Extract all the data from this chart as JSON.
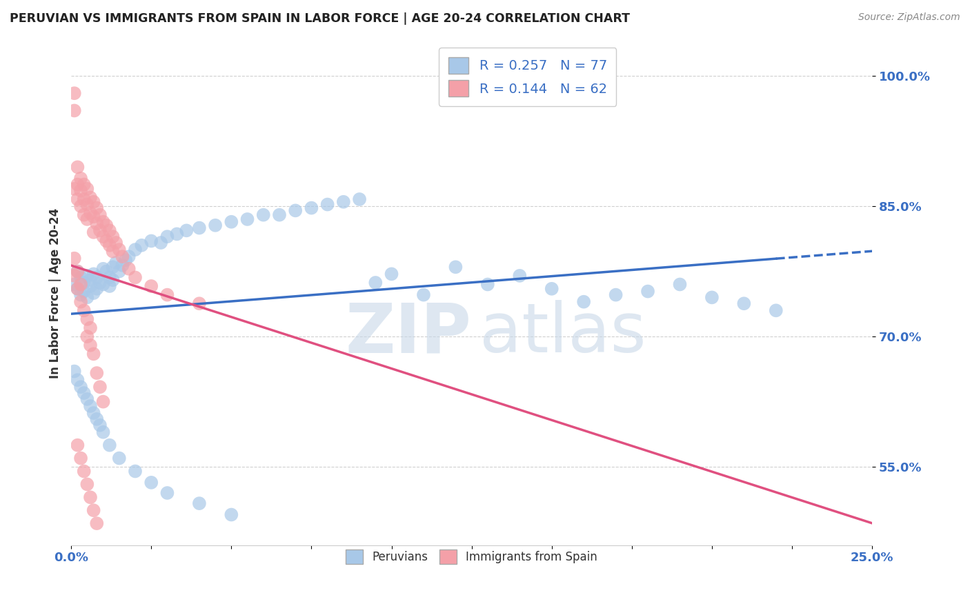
{
  "title": "PERUVIAN VS IMMIGRANTS FROM SPAIN IN LABOR FORCE | AGE 20-24 CORRELATION CHART",
  "source": "Source: ZipAtlas.com",
  "ylabel": "In Labor Force | Age 20-24",
  "xlim": [
    0.0,
    0.25
  ],
  "ylim": [
    0.46,
    1.04
  ],
  "y_tick_positions": [
    0.55,
    0.7,
    0.85,
    1.0
  ],
  "y_tick_labels": [
    "55.0%",
    "70.0%",
    "85.0%",
    "100.0%"
  ],
  "x_tick_positions": [
    0.0,
    0.025,
    0.05,
    0.075,
    0.1,
    0.125,
    0.15,
    0.175,
    0.2,
    0.225,
    0.25
  ],
  "blue_color": "#a8c8e8",
  "pink_color": "#f4a0a8",
  "blue_line_color": "#3a6fc4",
  "pink_line_color": "#e05080",
  "R_blue": 0.257,
  "N_blue": 77,
  "R_pink": 0.144,
  "N_pink": 62,
  "watermark_zip": "ZIP",
  "watermark_atlas": "atlas",
  "legend_label_blue": "Peruvians",
  "legend_label_pink": "Immigrants from Spain",
  "legend_R_blue": "R = 0.257   N = 77",
  "legend_R_pink": "R = 0.144   N = 62",
  "grid_color": "#d0d0d0",
  "background_color": "#ffffff",
  "title_color": "#222222",
  "source_color": "#888888",
  "axis_label_color": "#3a6fc4",
  "tick_label_color": "#3a6fc4",
  "blue_scatter_x": [
    0.001,
    0.002,
    0.002,
    0.003,
    0.003,
    0.004,
    0.004,
    0.005,
    0.005,
    0.006,
    0.006,
    0.007,
    0.007,
    0.008,
    0.008,
    0.009,
    0.01,
    0.01,
    0.011,
    0.012,
    0.012,
    0.013,
    0.013,
    0.014,
    0.015,
    0.016,
    0.017,
    0.018,
    0.02,
    0.022,
    0.025,
    0.028,
    0.03,
    0.033,
    0.036,
    0.04,
    0.045,
    0.05,
    0.055,
    0.06,
    0.065,
    0.07,
    0.075,
    0.08,
    0.085,
    0.09,
    0.095,
    0.1,
    0.11,
    0.12,
    0.13,
    0.14,
    0.15,
    0.16,
    0.17,
    0.18,
    0.19,
    0.2,
    0.21,
    0.22,
    0.001,
    0.002,
    0.003,
    0.004,
    0.005,
    0.006,
    0.007,
    0.008,
    0.009,
    0.01,
    0.012,
    0.015,
    0.02,
    0.025,
    0.03,
    0.04,
    0.05
  ],
  "blue_scatter_y": [
    0.76,
    0.775,
    0.755,
    0.768,
    0.748,
    0.762,
    0.752,
    0.77,
    0.745,
    0.765,
    0.758,
    0.772,
    0.75,
    0.768,
    0.755,
    0.762,
    0.778,
    0.76,
    0.775,
    0.768,
    0.758,
    0.78,
    0.765,
    0.785,
    0.775,
    0.782,
    0.788,
    0.792,
    0.8,
    0.805,
    0.81,
    0.808,
    0.815,
    0.818,
    0.822,
    0.825,
    0.828,
    0.832,
    0.835,
    0.84,
    0.84,
    0.845,
    0.848,
    0.852,
    0.855,
    0.858,
    0.762,
    0.772,
    0.748,
    0.78,
    0.76,
    0.77,
    0.755,
    0.74,
    0.748,
    0.752,
    0.76,
    0.745,
    0.738,
    0.73,
    0.66,
    0.65,
    0.642,
    0.635,
    0.628,
    0.62,
    0.612,
    0.605,
    0.598,
    0.59,
    0.575,
    0.56,
    0.545,
    0.532,
    0.52,
    0.508,
    0.495
  ],
  "pink_scatter_x": [
    0.001,
    0.001,
    0.001,
    0.002,
    0.002,
    0.002,
    0.003,
    0.003,
    0.003,
    0.004,
    0.004,
    0.004,
    0.005,
    0.005,
    0.005,
    0.006,
    0.006,
    0.007,
    0.007,
    0.007,
    0.008,
    0.008,
    0.009,
    0.009,
    0.01,
    0.01,
    0.011,
    0.011,
    0.012,
    0.012,
    0.013,
    0.013,
    0.014,
    0.015,
    0.016,
    0.018,
    0.02,
    0.025,
    0.03,
    0.04,
    0.001,
    0.001,
    0.002,
    0.002,
    0.003,
    0.003,
    0.004,
    0.005,
    0.005,
    0.006,
    0.006,
    0.007,
    0.008,
    0.009,
    0.01,
    0.002,
    0.003,
    0.004,
    0.005,
    0.006,
    0.007,
    0.008
  ],
  "pink_scatter_y": [
    0.98,
    0.96,
    0.87,
    0.895,
    0.875,
    0.858,
    0.882,
    0.868,
    0.85,
    0.875,
    0.858,
    0.84,
    0.87,
    0.852,
    0.835,
    0.86,
    0.842,
    0.855,
    0.838,
    0.82,
    0.848,
    0.83,
    0.84,
    0.822,
    0.832,
    0.815,
    0.828,
    0.81,
    0.822,
    0.805,
    0.815,
    0.798,
    0.808,
    0.8,
    0.792,
    0.778,
    0.768,
    0.758,
    0.748,
    0.738,
    0.79,
    0.77,
    0.775,
    0.755,
    0.76,
    0.74,
    0.73,
    0.72,
    0.7,
    0.71,
    0.69,
    0.68,
    0.658,
    0.642,
    0.625,
    0.575,
    0.56,
    0.545,
    0.53,
    0.515,
    0.5,
    0.485
  ]
}
